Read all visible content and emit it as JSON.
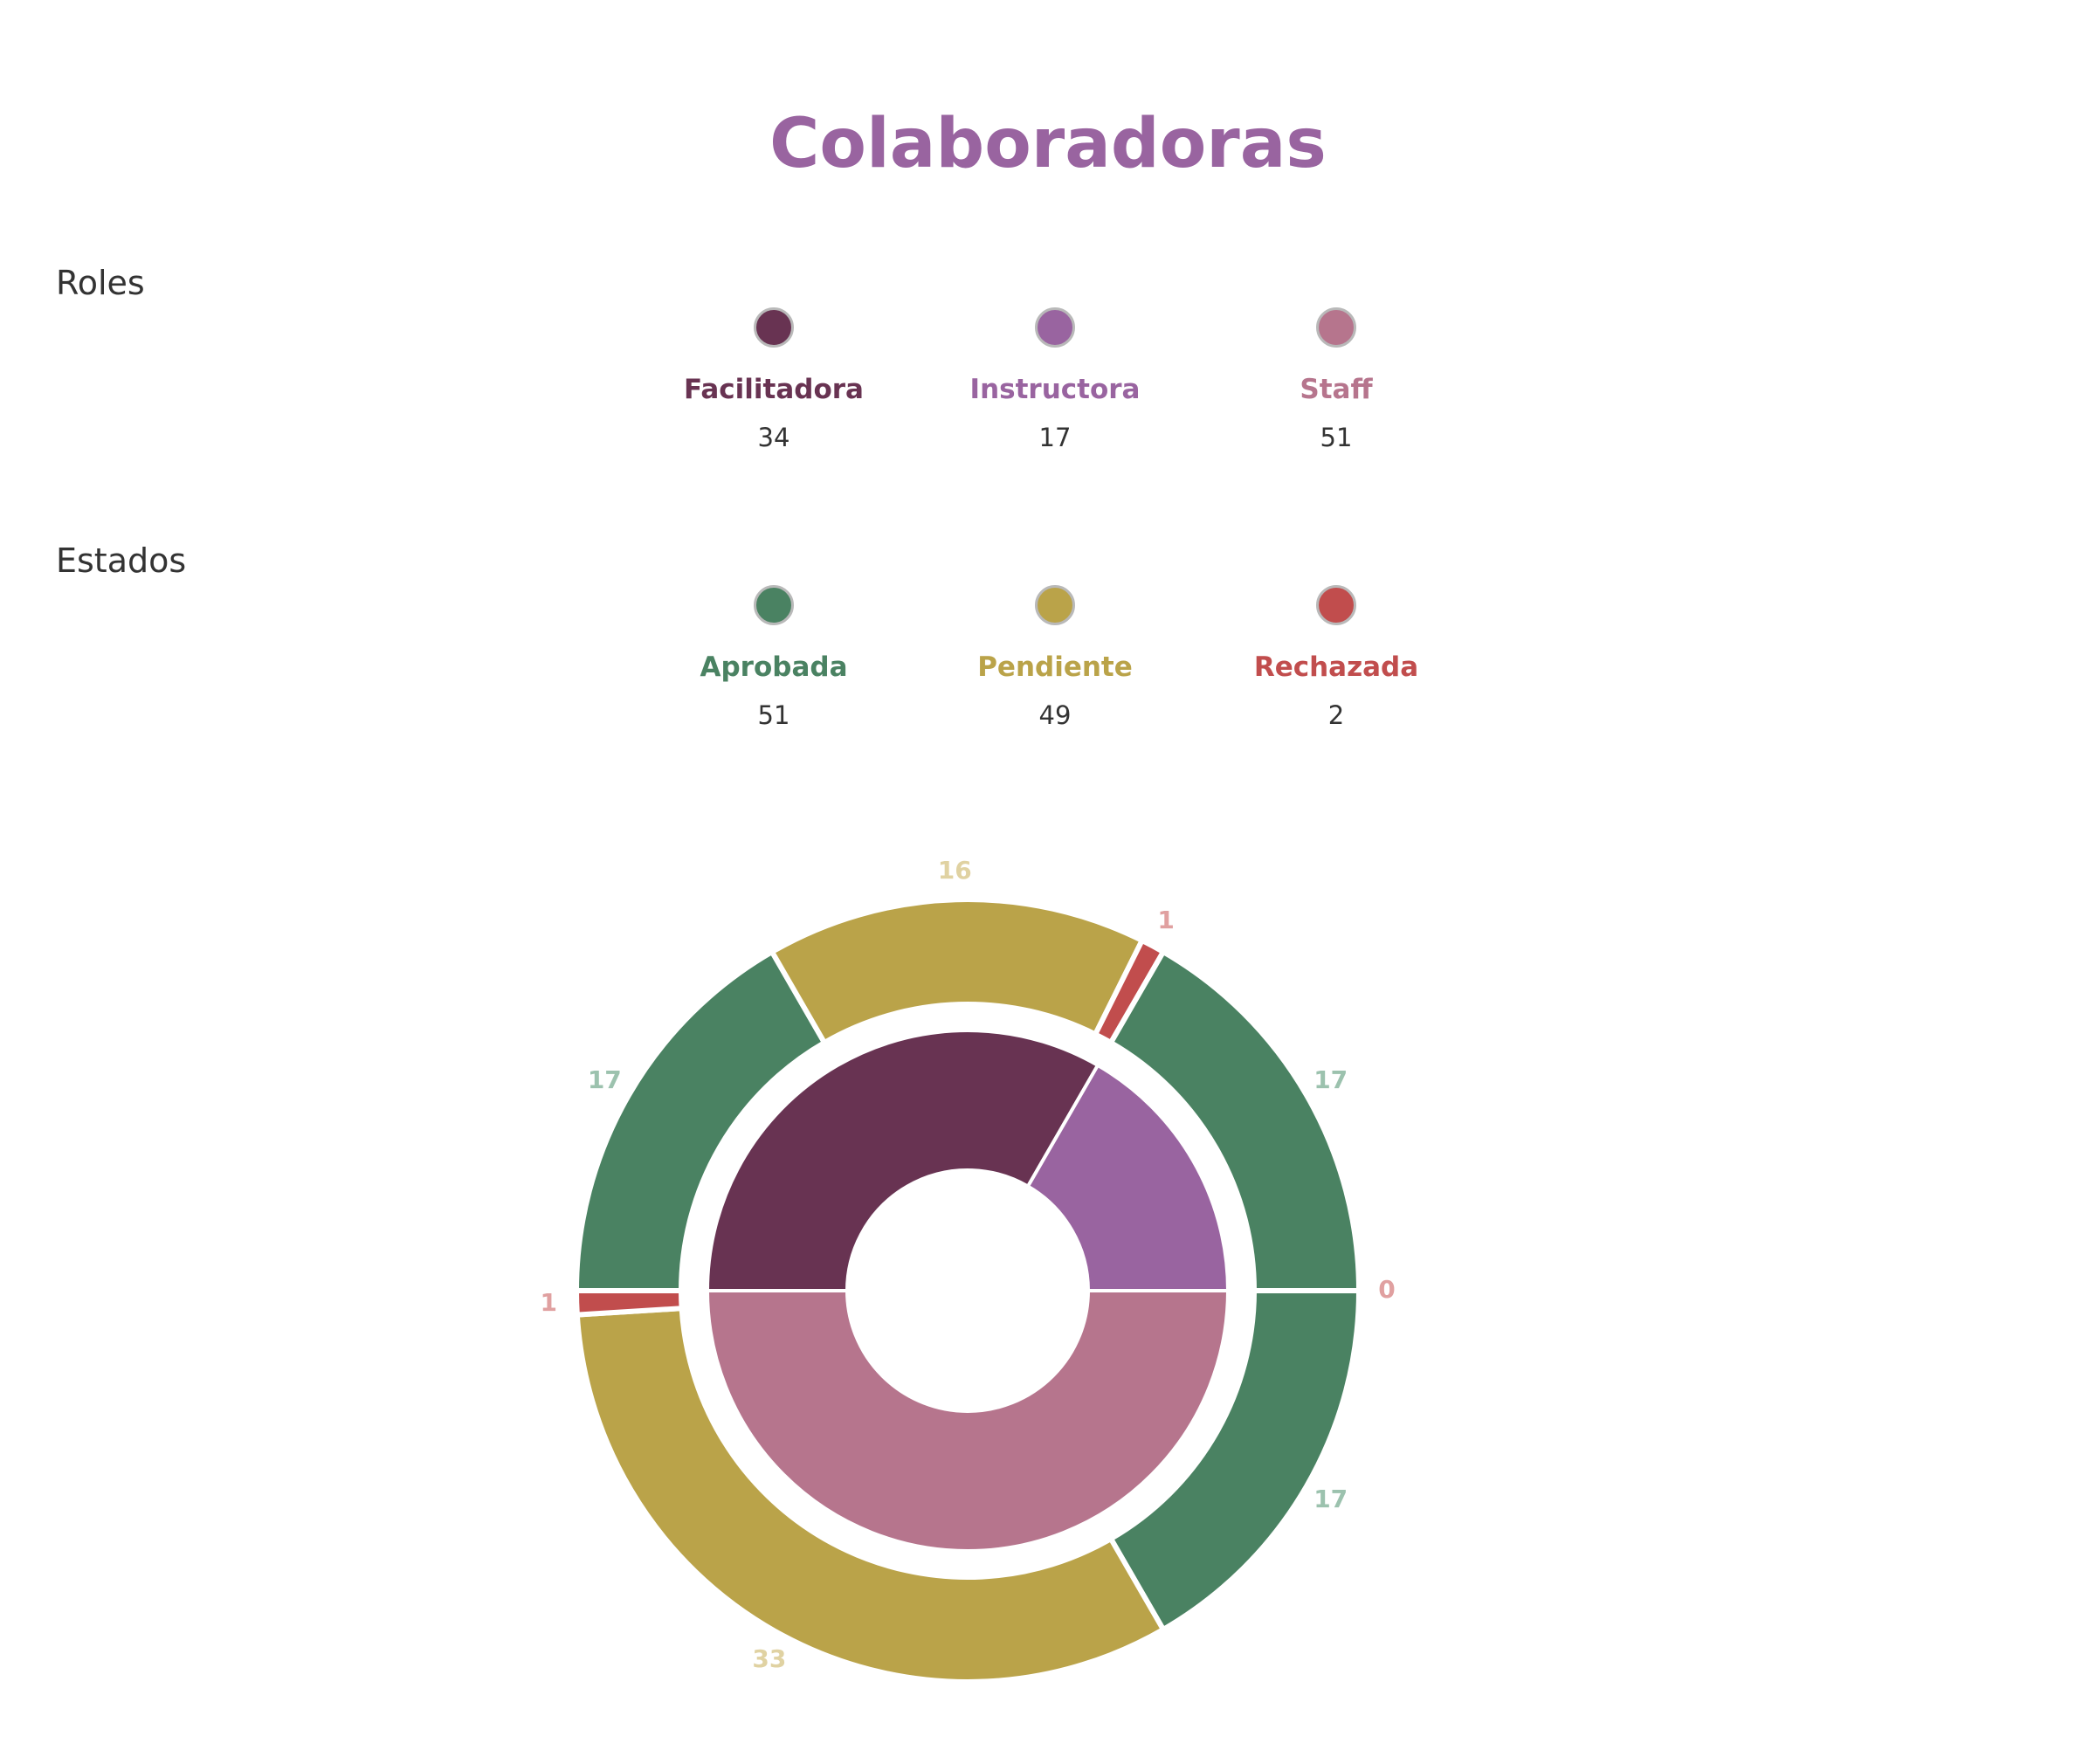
{
  "page": {
    "title": "Colaboradoras"
  },
  "legends": {
    "roles": {
      "label": "Roles",
      "items": [
        {
          "name": "Facilitadora",
          "count": "34",
          "color": "#683352"
        },
        {
          "name": "Instructora",
          "count": "17",
          "color": "#9964A0"
        },
        {
          "name": "Staff",
          "count": "51",
          "color": "#B6758D"
        }
      ]
    },
    "estados": {
      "label": "Estados",
      "items": [
        {
          "name": "Aprobada",
          "count": "51",
          "color": "#4A8262"
        },
        {
          "name": "Pendiente",
          "count": "49",
          "color": "#BAA349"
        },
        {
          "name": "Rechazada",
          "count": "2",
          "color": "#C14D4D"
        }
      ]
    }
  },
  "chart_data": {
    "type": "pie",
    "variant": "nested-donut",
    "title": "Colaboradoras",
    "inner_ring": {
      "series": "Roles",
      "slices": [
        {
          "label": "Facilitadora",
          "value": 34,
          "color": "#683352"
        },
        {
          "label": "Instructora",
          "value": 17,
          "color": "#9964A0"
        },
        {
          "label": "Staff",
          "value": 51,
          "color": "#B6758D"
        }
      ]
    },
    "outer_ring": {
      "series": "Estados",
      "slices": [
        {
          "role": "Facilitadora",
          "estado": "Aprobada",
          "value": 17,
          "color": "#4A8262",
          "label_color": "#9CC2AE"
        },
        {
          "role": "Facilitadora",
          "estado": "Pendiente",
          "value": 16,
          "color": "#BAA349",
          "label_color": "#E0D2A2"
        },
        {
          "role": "Facilitadora",
          "estado": "Rechazada",
          "value": 1,
          "color": "#C14D4D",
          "label_color": "#E0A0A0"
        },
        {
          "role": "Instructora",
          "estado": "Aprobada",
          "value": 17,
          "color": "#4A8262",
          "label_color": "#9CC2AE"
        },
        {
          "role": "Instructora",
          "estado": "Rechazada",
          "value": 0,
          "color": "#C14D4D",
          "label_color": "#E0A0A0"
        },
        {
          "role": "Staff",
          "estado": "Aprobada",
          "value": 17,
          "color": "#4A8262",
          "label_color": "#9CC2AE"
        },
        {
          "role": "Staff",
          "estado": "Pendiente",
          "value": 33,
          "color": "#BAA349",
          "label_color": "#E0D2A2"
        },
        {
          "role": "Staff",
          "estado": "Rechazada",
          "value": 1,
          "color": "#C14D4D",
          "label_color": "#E0A0A0"
        }
      ]
    }
  }
}
